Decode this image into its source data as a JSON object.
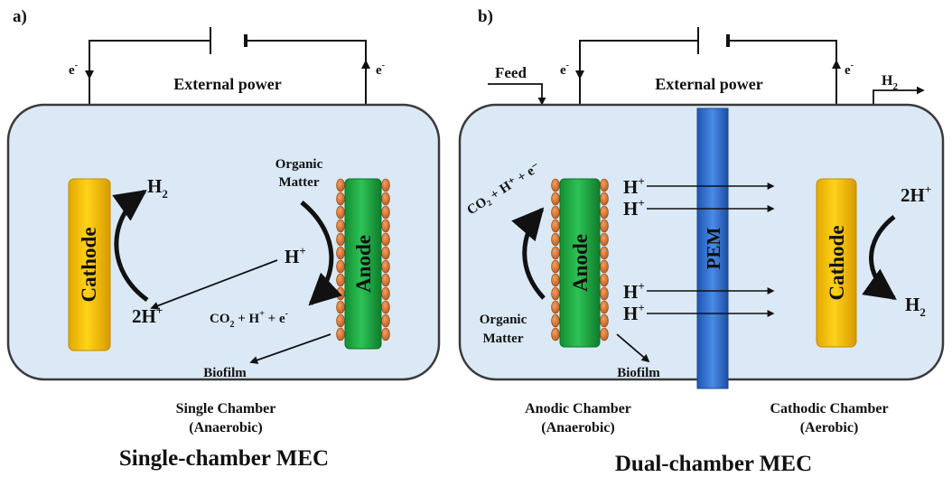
{
  "colors": {
    "chamber_fill": "#dbe9f6",
    "chamber_stroke": "#3a3a3a",
    "cathode_fill": "#f5c400",
    "anode_fill": "#1fae44",
    "pem_fill": "#2f6fd0",
    "biofilm_fill": "#d9793a"
  },
  "panel_a": {
    "letter": "a)",
    "external_power": "External power",
    "electron_left": "e",
    "electron_right": "e",
    "electron_sup": "-",
    "cathode": "Cathode",
    "anode": "Anode",
    "h2_main": "H",
    "h2_sub": "2",
    "two_h_plus": "2H",
    "h_plus": "H",
    "plus": "+",
    "organic_matter_1": "Organic",
    "organic_matter_2": "Matter",
    "co2_expr_1": "CO",
    "co2_expr_2": "2",
    "co2_expr_3": " + H",
    "co2_expr_4": "+",
    "co2_expr_5": " + e",
    "co2_expr_6": "-",
    "biofilm": "Biofilm",
    "chamber_label_1": "Single Chamber",
    "chamber_label_2": "(Anaerobic)",
    "title": "Single-chamber MEC"
  },
  "panel_b": {
    "letter": "b)",
    "external_power": "External power",
    "feed": "Feed",
    "electron_left": "e",
    "electron_right": "e",
    "electron_sup": "-",
    "h2_out_main": "H",
    "h2_out_sub": "2",
    "anode": "Anode",
    "cathode": "Cathode",
    "pem": "PEM",
    "h_plus": "H",
    "plus": "+",
    "two_h_plus": "2H",
    "h2_main": "H",
    "h2_sub": "2",
    "co2_expr": "CO₂ + H⁺ + e⁻",
    "organic_matter_1": "Organic",
    "organic_matter_2": "Matter",
    "biofilm": "Biofilm",
    "anodic_label_1": "Anodic Chamber",
    "anodic_label_2": "(Anaerobic)",
    "cathodic_label_1": "Cathodic Chamber",
    "cathodic_label_2": "(Aerobic)",
    "title": "Dual-chamber MEC"
  }
}
